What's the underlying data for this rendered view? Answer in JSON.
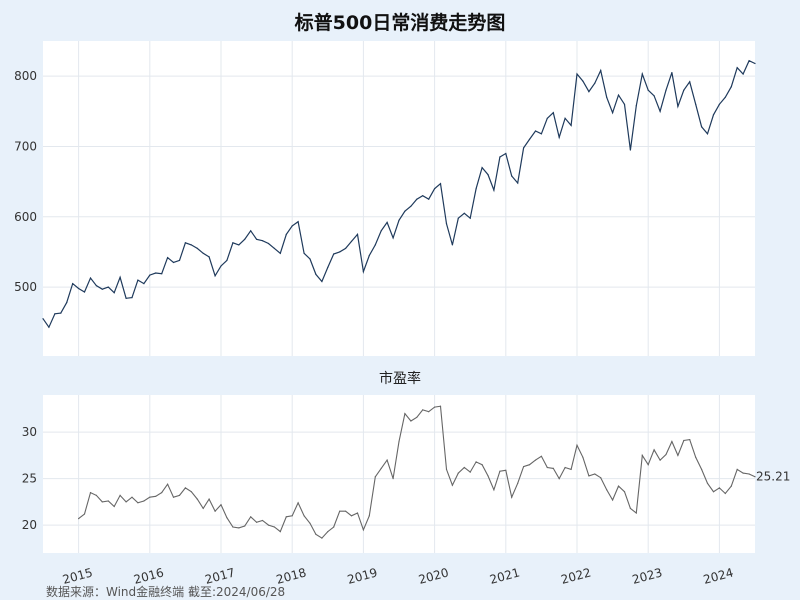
{
  "colors": {
    "background": "#e8f1fa",
    "plot_bg": "#ffffff",
    "grid": "#e3e8ee",
    "upper_line": "#1f3a5c",
    "lower_line": "#666666"
  },
  "source": "数据来源：Wind金融终端 截至:2024/06/28",
  "chart_data": [
    {
      "type": "line",
      "title": "标普500日常消费走势图",
      "xlabel": "",
      "ylabel": "",
      "ylim": [
        402,
        850
      ],
      "yticks": [
        500,
        600,
        700,
        800
      ],
      "xlim": [
        2014.5,
        2024.5
      ],
      "xticks": [
        2015,
        2016,
        2017,
        2018,
        2019,
        2020,
        2021,
        2022,
        2023,
        2024
      ],
      "grid": true,
      "series": [
        {
          "x": [
            2014.5,
            2014.583,
            2014.667,
            2014.75,
            2014.833,
            2014.917,
            2015.0,
            2015.083,
            2015.167,
            2015.25,
            2015.333,
            2015.417,
            2015.5,
            2015.583,
            2015.667,
            2015.75,
            2015.833,
            2015.917,
            2016.0,
            2016.083,
            2016.167,
            2016.25,
            2016.333,
            2016.417,
            2016.5,
            2016.583,
            2016.667,
            2016.75,
            2016.833,
            2016.917,
            2017.0,
            2017.083,
            2017.167,
            2017.25,
            2017.333,
            2017.417,
            2017.5,
            2017.583,
            2017.667,
            2017.75,
            2017.833,
            2017.917,
            2018.0,
            2018.083,
            2018.167,
            2018.25,
            2018.333,
            2018.417,
            2018.5,
            2018.583,
            2018.667,
            2018.75,
            2018.833,
            2018.917,
            2019.0,
            2019.083,
            2019.167,
            2019.25,
            2019.333,
            2019.417,
            2019.5,
            2019.583,
            2019.667,
            2019.75,
            2019.833,
            2019.917,
            2020.0,
            2020.083,
            2020.167,
            2020.25,
            2020.333,
            2020.417,
            2020.5,
            2020.583,
            2020.667,
            2020.75,
            2020.833,
            2020.917,
            2021.0,
            2021.083,
            2021.167,
            2021.25,
            2021.333,
            2021.417,
            2021.5,
            2021.583,
            2021.667,
            2021.75,
            2021.833,
            2021.917,
            2022.0,
            2022.083,
            2022.167,
            2022.25,
            2022.333,
            2022.417,
            2022.5,
            2022.583,
            2022.667,
            2022.75,
            2022.833,
            2022.917,
            2023.0,
            2023.083,
            2023.167,
            2023.25,
            2023.333,
            2023.417,
            2023.5,
            2023.583,
            2023.667,
            2023.75,
            2023.833,
            2023.917,
            2024.0,
            2024.083,
            2024.167,
            2024.25,
            2024.333,
            2024.417,
            2024.5
          ],
          "values": [
            455,
            443,
            462,
            463,
            478,
            505,
            498,
            493,
            513,
            502,
            497,
            500,
            492,
            514,
            484,
            485,
            510,
            505,
            517,
            520,
            519,
            542,
            535,
            538,
            563,
            560,
            555,
            548,
            543,
            516,
            530,
            538,
            563,
            560,
            568,
            580,
            568,
            566,
            562,
            555,
            548,
            575,
            587,
            593,
            548,
            540,
            518,
            508,
            528,
            547,
            550,
            555,
            565,
            575,
            522,
            545,
            560,
            580,
            592,
            570,
            595,
            608,
            615,
            625,
            630,
            625,
            640,
            647,
            590,
            560,
            598,
            605,
            598,
            640,
            670,
            660,
            638,
            685,
            690,
            658,
            648,
            698,
            710,
            722,
            718,
            740,
            748,
            713,
            740,
            730,
            803,
            793,
            778,
            790,
            808,
            770,
            748,
            773,
            760,
            695,
            758,
            803,
            780,
            772,
            750,
            780,
            805,
            757,
            780,
            792,
            760,
            728,
            718,
            745,
            760,
            770,
            785,
            812,
            803,
            822,
            818
          ]
        }
      ]
    },
    {
      "type": "line",
      "title": "市盈率",
      "xlabel": "",
      "ylabel": "",
      "ylim": [
        17,
        34
      ],
      "yticks": [
        20,
        25,
        30
      ],
      "xlim": [
        2014.5,
        2024.5
      ],
      "xticks": [
        2015,
        2016,
        2017,
        2018,
        2019,
        2020,
        2021,
        2022,
        2023,
        2024
      ],
      "grid": true,
      "end_label": "25.21",
      "series": [
        {
          "x": [
            2015.0,
            2015.083,
            2015.167,
            2015.25,
            2015.333,
            2015.417,
            2015.5,
            2015.583,
            2015.667,
            2015.75,
            2015.833,
            2015.917,
            2016.0,
            2016.083,
            2016.167,
            2016.25,
            2016.333,
            2016.417,
            2016.5,
            2016.583,
            2016.667,
            2016.75,
            2016.833,
            2016.917,
            2017.0,
            2017.083,
            2017.167,
            2017.25,
            2017.333,
            2017.417,
            2017.5,
            2017.583,
            2017.667,
            2017.75,
            2017.833,
            2017.917,
            2018.0,
            2018.083,
            2018.167,
            2018.25,
            2018.333,
            2018.417,
            2018.5,
            2018.583,
            2018.667,
            2018.75,
            2018.833,
            2018.917,
            2019.0,
            2019.083,
            2019.167,
            2019.25,
            2019.333,
            2019.417,
            2019.5,
            2019.583,
            2019.667,
            2019.75,
            2019.833,
            2019.917,
            2020.0,
            2020.083,
            2020.167,
            2020.25,
            2020.333,
            2020.417,
            2020.5,
            2020.583,
            2020.667,
            2020.75,
            2020.833,
            2020.917,
            2021.0,
            2021.083,
            2021.167,
            2021.25,
            2021.333,
            2021.417,
            2021.5,
            2021.583,
            2021.667,
            2021.75,
            2021.833,
            2021.917,
            2022.0,
            2022.083,
            2022.167,
            2022.25,
            2022.333,
            2022.417,
            2022.5,
            2022.583,
            2022.667,
            2022.75,
            2022.833,
            2022.917,
            2023.0,
            2023.083,
            2023.167,
            2023.25,
            2023.333,
            2023.417,
            2023.5,
            2023.583,
            2023.667,
            2023.75,
            2023.833,
            2023.917,
            2024.0,
            2024.083,
            2024.167,
            2024.25,
            2024.333,
            2024.417,
            2024.5
          ],
          "values": [
            20.7,
            21.2,
            23.5,
            23.2,
            22.5,
            22.6,
            22.0,
            23.2,
            22.5,
            23.0,
            22.4,
            22.6,
            23.0,
            23.1,
            23.5,
            24.4,
            23.0,
            23.2,
            24.0,
            23.6,
            22.8,
            21.8,
            22.8,
            21.5,
            22.2,
            20.8,
            19.8,
            19.7,
            19.9,
            20.9,
            20.3,
            20.5,
            20.0,
            19.8,
            19.3,
            20.9,
            21.0,
            22.4,
            21.0,
            20.2,
            19.0,
            18.6,
            19.3,
            19.8,
            21.5,
            21.5,
            21.0,
            21.3,
            19.5,
            21.0,
            25.2,
            26.1,
            27.0,
            25.0,
            29.0,
            32.0,
            31.2,
            31.6,
            32.4,
            32.2,
            32.7,
            32.8,
            26.0,
            24.3,
            25.6,
            26.2,
            25.7,
            26.8,
            26.5,
            25.3,
            23.8,
            25.8,
            25.9,
            23.0,
            24.5,
            26.3,
            26.5,
            27.0,
            27.4,
            26.2,
            26.1,
            25.0,
            26.2,
            26.0,
            28.6,
            27.3,
            25.3,
            25.5,
            25.1,
            23.8,
            22.7,
            24.2,
            23.6,
            21.8,
            21.3,
            27.5,
            26.5,
            28.1,
            27.0,
            27.6,
            29.0,
            27.5,
            29.1,
            29.2,
            27.3,
            26.0,
            24.5,
            23.6,
            24.0,
            23.4,
            24.2,
            26.0,
            25.6,
            25.5,
            25.21
          ]
        }
      ]
    }
  ]
}
